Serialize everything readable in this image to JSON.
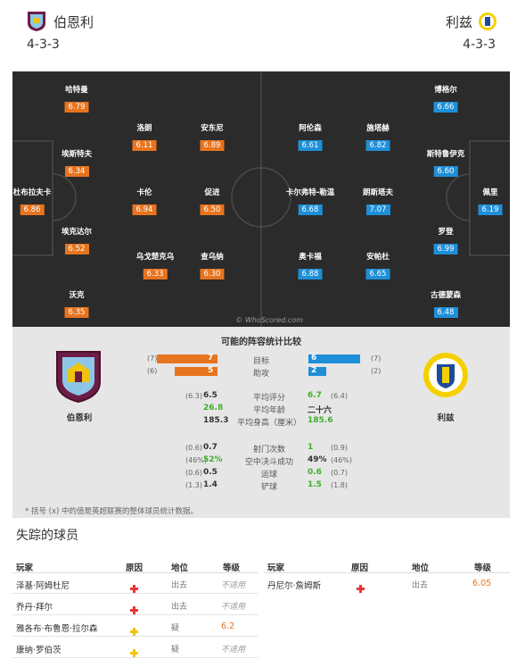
{
  "header": {
    "home_team": "伯恩利",
    "home_formation": "4-3-3",
    "away_team": "利兹",
    "away_formation": "4-3-3"
  },
  "pitch": {
    "watermark": "© WhoScored.com",
    "home_players": [
      {
        "name": "哈特曼",
        "rating": "6.79"
      },
      {
        "name": "埃斯特夫",
        "rating": "6.34"
      },
      {
        "name": "杜布拉夫卡",
        "rating": "6.86"
      },
      {
        "name": "埃克达尔",
        "rating": "6.52"
      },
      {
        "name": "沃克",
        "rating": "6.35"
      },
      {
        "name": "洛朗",
        "rating": "6.11"
      },
      {
        "name": "卡伦",
        "rating": "6.94"
      },
      {
        "name": "乌戈楚克乌",
        "rating": "6.33"
      },
      {
        "name": "安东尼",
        "rating": "6.89"
      },
      {
        "name": "促进",
        "rating": "6.50"
      },
      {
        "name": "查乌纳",
        "rating": "6.30"
      }
    ],
    "away_players": [
      {
        "name": "阿伦森",
        "rating": "6.61"
      },
      {
        "name": "卡尔弗特-勒温",
        "rating": "6.68"
      },
      {
        "name": "奥卡福",
        "rating": "6.88"
      },
      {
        "name": "施塔赫",
        "rating": "6.82"
      },
      {
        "name": "朗斯塔夫",
        "rating": "7.07"
      },
      {
        "name": "安帕杜",
        "rating": "6.65"
      },
      {
        "name": "博格尔",
        "rating": "6.66"
      },
      {
        "name": "斯特鲁伊克",
        "rating": "6.60"
      },
      {
        "name": "罗登",
        "rating": "6.99"
      },
      {
        "name": "古德蒙森",
        "rating": "6.48"
      },
      {
        "name": "佩里",
        "rating": "6.19"
      }
    ]
  },
  "stats": {
    "title": "可能的阵容统计比较",
    "home_label": "伯恩利",
    "away_label": "利兹",
    "bars": [
      {
        "label": "目标",
        "home": "7",
        "home_avg": "(7)",
        "away": "6",
        "away_avg": "(7)",
        "home_frac": 1.0,
        "away_frac": 0.86
      },
      {
        "label": "助攻",
        "home": "5",
        "home_avg": "(6)",
        "away": "2",
        "away_avg": "(2)",
        "home_frac": 0.71,
        "away_frac": 0.29
      }
    ],
    "rows_a": [
      {
        "label": "平均评分",
        "home": "6.5",
        "home_avg": "(6.3)",
        "away": "6.7",
        "away_avg": "(6.4)",
        "home_green": false,
        "away_green": true
      },
      {
        "label": "平均年龄",
        "home": "26.8",
        "home_avg": "",
        "away": "二十六",
        "away_avg": "",
        "home_green": true,
        "away_green": false
      },
      {
        "label": "平均身高（厘米）",
        "home": "185.3",
        "home_avg": "",
        "away": "185.6",
        "away_avg": "",
        "home_green": false,
        "away_green": true
      }
    ],
    "rows_b": [
      {
        "label": "射门次数",
        "home": "0.7",
        "home_avg": "(0.6)",
        "away": "1",
        "away_avg": "(0.9)",
        "home_green": false,
        "away_green": true
      },
      {
        "label": "空中决斗成功",
        "home": "52%",
        "home_avg": "(46%)",
        "away": "49%",
        "away_avg": "(46%)",
        "home_green": true,
        "away_green": false
      },
      {
        "label": "运球",
        "home": "0.5",
        "home_avg": "(0.6)",
        "away": "0.6",
        "away_avg": "(0.7)",
        "home_green": false,
        "away_green": true
      },
      {
        "label": "铲球",
        "home": "1.4",
        "home_avg": "(1.3)",
        "away": "1.5",
        "away_avg": "(1.8)",
        "home_green": false,
        "away_green": true
      }
    ],
    "footnote": "* 括号 (x) 中的值是英超联赛的整体球员统计数据。"
  },
  "missing": {
    "title": "失踪的球员",
    "headers": {
      "player": "玩家",
      "reason": "原因",
      "status": "地位",
      "rating": "等级"
    },
    "home": [
      {
        "name": "泽基·阿姆杜尼",
        "reason": "red",
        "status": "出去",
        "rating": "不适用",
        "rating_na": true
      },
      {
        "name": "乔丹·拜尔",
        "reason": "red",
        "status": "出去",
        "rating": "不适用",
        "rating_na": true
      },
      {
        "name": "雅各布·布鲁恩·拉尔森",
        "reason": "yellow",
        "status": "疑",
        "rating": "6.2",
        "rating_na": false
      },
      {
        "name": "康纳·罗伯茨",
        "reason": "yellow",
        "status": "疑",
        "rating": "不适用",
        "rating_na": true
      }
    ],
    "away": [
      {
        "name": "丹尼尔·詹姆斯",
        "reason": "red",
        "status": "出去",
        "rating": "6.05",
        "rating_na": false
      }
    ]
  },
  "colors": {
    "home_accent": "#e8741f",
    "away_accent": "#1e8fd8",
    "green": "#3fae2a"
  }
}
